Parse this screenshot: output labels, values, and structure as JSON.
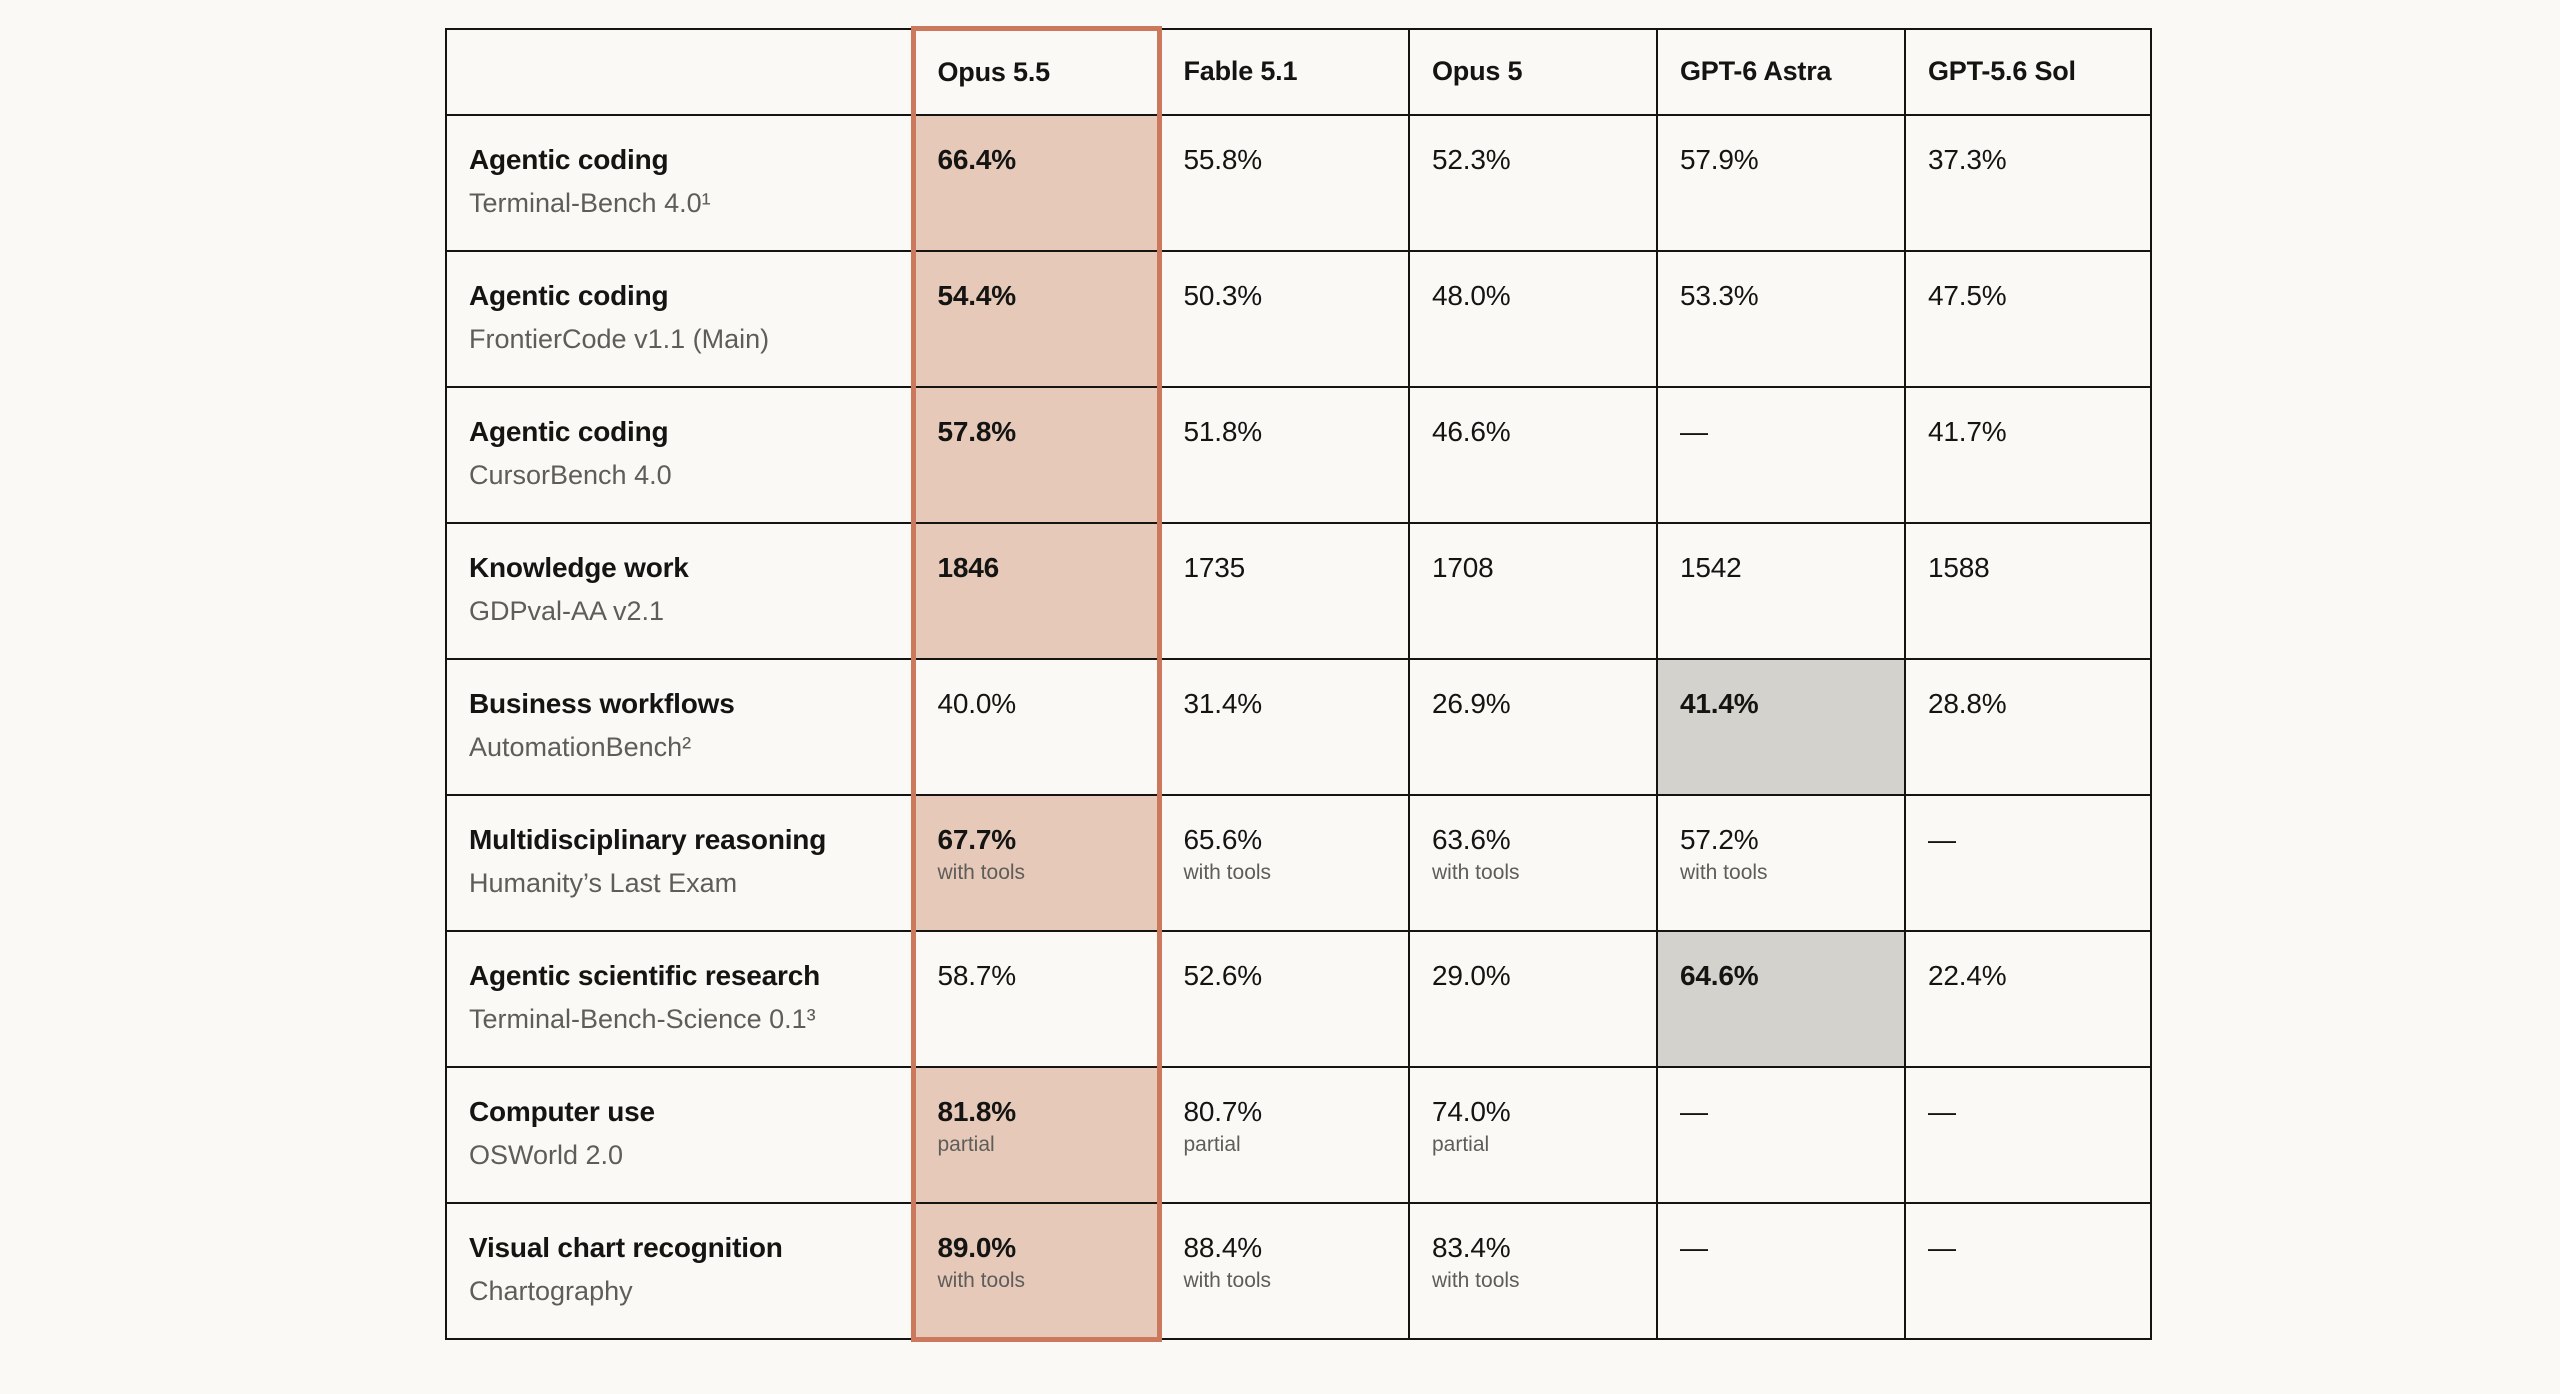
{
  "accent_color": "#cc785c",
  "highlight_fill": "#e6c9b9",
  "best_other_fill": "#d4d2cc",
  "highlighted_model": "Opus 5.5",
  "table": {
    "columns": [
      "",
      "Opus 5.5",
      "Fable 5.1",
      "Opus 5",
      "GPT-6 Astra",
      "GPT-5.6 Sol"
    ],
    "rows": [
      {
        "category": "Agentic coding",
        "benchmark": "Terminal-Bench 4.0¹",
        "cells": [
          {
            "value": "66.4%",
            "note": "",
            "bold": true,
            "highlight": "orange"
          },
          {
            "value": "55.8%",
            "note": "",
            "bold": false,
            "highlight": ""
          },
          {
            "value": "52.3%",
            "note": "",
            "bold": false,
            "highlight": ""
          },
          {
            "value": "57.9%",
            "note": "",
            "bold": false,
            "highlight": ""
          },
          {
            "value": "37.3%",
            "note": "",
            "bold": false,
            "highlight": ""
          }
        ]
      },
      {
        "category": "Agentic coding",
        "benchmark": "FrontierCode v1.1 (Main)",
        "cells": [
          {
            "value": "54.4%",
            "note": "",
            "bold": true,
            "highlight": "orange"
          },
          {
            "value": "50.3%",
            "note": "",
            "bold": false,
            "highlight": ""
          },
          {
            "value": "48.0%",
            "note": "",
            "bold": false,
            "highlight": ""
          },
          {
            "value": "53.3%",
            "note": "",
            "bold": false,
            "highlight": ""
          },
          {
            "value": "47.5%",
            "note": "",
            "bold": false,
            "highlight": ""
          }
        ]
      },
      {
        "category": "Agentic coding",
        "benchmark": "CursorBench 4.0",
        "cells": [
          {
            "value": "57.8%",
            "note": "",
            "bold": true,
            "highlight": "orange"
          },
          {
            "value": "51.8%",
            "note": "",
            "bold": false,
            "highlight": ""
          },
          {
            "value": "46.6%",
            "note": "",
            "bold": false,
            "highlight": ""
          },
          {
            "value": "—",
            "note": "",
            "bold": false,
            "highlight": ""
          },
          {
            "value": "41.7%",
            "note": "",
            "bold": false,
            "highlight": ""
          }
        ]
      },
      {
        "category": "Knowledge work",
        "benchmark": "GDPval-AA v2.1",
        "cells": [
          {
            "value": "1846",
            "note": "",
            "bold": true,
            "highlight": "orange"
          },
          {
            "value": "1735",
            "note": "",
            "bold": false,
            "highlight": ""
          },
          {
            "value": "1708",
            "note": "",
            "bold": false,
            "highlight": ""
          },
          {
            "value": "1542",
            "note": "",
            "bold": false,
            "highlight": ""
          },
          {
            "value": "1588",
            "note": "",
            "bold": false,
            "highlight": ""
          }
        ]
      },
      {
        "category": "Business workflows",
        "benchmark": "AutomationBench²",
        "cells": [
          {
            "value": "40.0%",
            "note": "",
            "bold": false,
            "highlight": ""
          },
          {
            "value": "31.4%",
            "note": "",
            "bold": false,
            "highlight": ""
          },
          {
            "value": "26.9%",
            "note": "",
            "bold": false,
            "highlight": ""
          },
          {
            "value": "41.4%",
            "note": "",
            "bold": true,
            "highlight": "gray"
          },
          {
            "value": "28.8%",
            "note": "",
            "bold": false,
            "highlight": ""
          }
        ]
      },
      {
        "category": "Multidisciplinary reasoning",
        "benchmark": "Humanity’s Last Exam",
        "cells": [
          {
            "value": "67.7%",
            "note": "with tools",
            "bold": true,
            "highlight": "orange"
          },
          {
            "value": "65.6%",
            "note": "with tools",
            "bold": false,
            "highlight": ""
          },
          {
            "value": "63.6%",
            "note": "with tools",
            "bold": false,
            "highlight": ""
          },
          {
            "value": "57.2%",
            "note": "with tools",
            "bold": false,
            "highlight": ""
          },
          {
            "value": "—",
            "note": "",
            "bold": false,
            "highlight": ""
          }
        ]
      },
      {
        "category": "Agentic scientific research",
        "benchmark": "Terminal-Bench-Science 0.1³",
        "cells": [
          {
            "value": "58.7%",
            "note": "",
            "bold": false,
            "highlight": ""
          },
          {
            "value": "52.6%",
            "note": "",
            "bold": false,
            "highlight": ""
          },
          {
            "value": "29.0%",
            "note": "",
            "bold": false,
            "highlight": ""
          },
          {
            "value": "64.6%",
            "note": "",
            "bold": true,
            "highlight": "gray"
          },
          {
            "value": "22.4%",
            "note": "",
            "bold": false,
            "highlight": ""
          }
        ]
      },
      {
        "category": "Computer use",
        "benchmark": "OSWorld 2.0",
        "cells": [
          {
            "value": "81.8%",
            "note": "partial",
            "bold": true,
            "highlight": "orange"
          },
          {
            "value": "80.7%",
            "note": "partial",
            "bold": false,
            "highlight": ""
          },
          {
            "value": "74.0%",
            "note": "partial",
            "bold": false,
            "highlight": ""
          },
          {
            "value": "—",
            "note": "",
            "bold": false,
            "highlight": ""
          },
          {
            "value": "—",
            "note": "",
            "bold": false,
            "highlight": ""
          }
        ]
      },
      {
        "category": "Visual chart recognition",
        "benchmark": "Chartography",
        "cells": [
          {
            "value": "89.0%",
            "note": "with tools",
            "bold": true,
            "highlight": "orange"
          },
          {
            "value": "88.4%",
            "note": "with tools",
            "bold": false,
            "highlight": ""
          },
          {
            "value": "83.4%",
            "note": "with tools",
            "bold": false,
            "highlight": ""
          },
          {
            "value": "—",
            "note": "",
            "bold": false,
            "highlight": ""
          },
          {
            "value": "—",
            "note": "",
            "bold": false,
            "highlight": ""
          }
        ]
      }
    ]
  }
}
